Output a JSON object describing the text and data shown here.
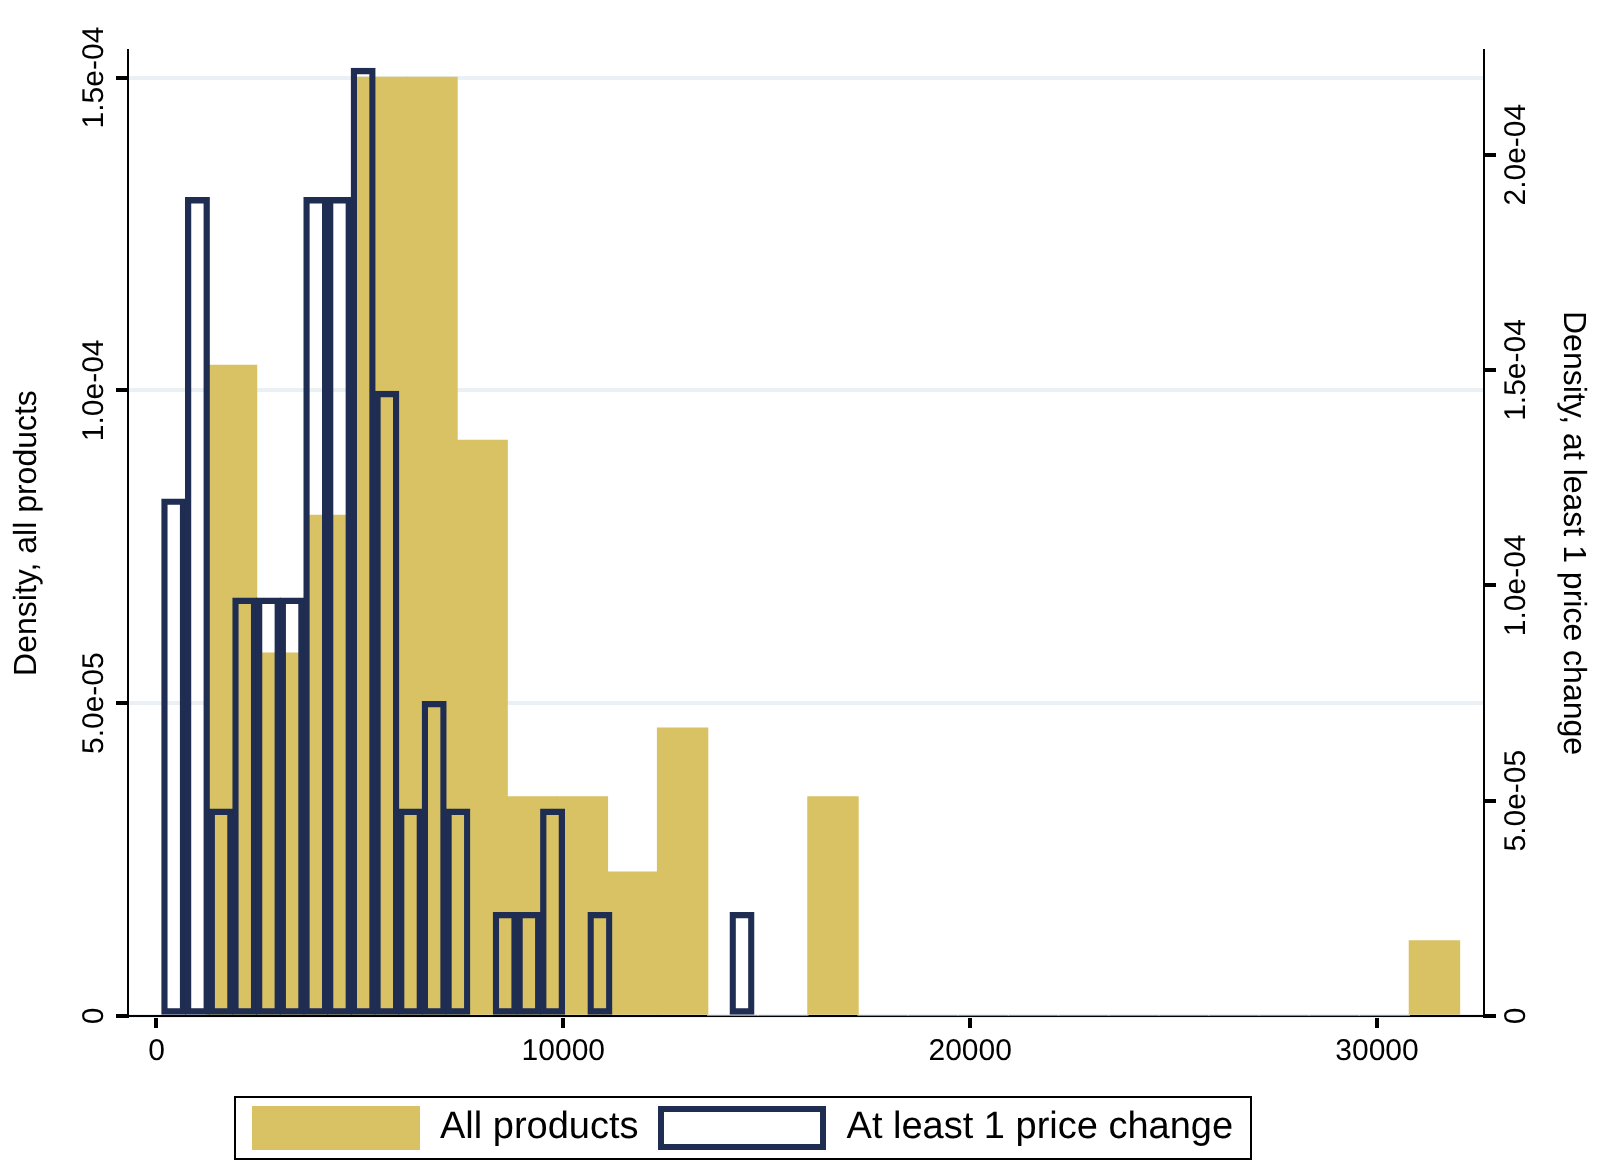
{
  "chart_data": {
    "type": "histogram",
    "ylabel": "Density, all products",
    "y2label": "Density, at least 1 price change",
    "xlim": [
      -700,
      32630
    ],
    "xticks": [
      0,
      10000,
      20000,
      30000
    ],
    "ylim": [
      0,
      0.0001544
    ],
    "yticks": [
      {
        "value": 0,
        "label": "0"
      },
      {
        "value": 5e-05,
        "label": "5.0e-05"
      },
      {
        "value": 0.0001,
        "label": "1.0e-04"
      },
      {
        "value": 0.00015,
        "label": "1.5e-04"
      }
    ],
    "y2lim": [
      0,
      0.0002243
    ],
    "y2ticks": [
      {
        "value": 0,
        "label": "0"
      },
      {
        "value": 5e-05,
        "label": "5.0e-05"
      },
      {
        "value": 0.0001,
        "label": "1.0e-04"
      },
      {
        "value": 0.00015,
        "label": "1.5e-04"
      },
      {
        "value": 0.0002,
        "label": "2.0e-04"
      }
    ],
    "grid": "y",
    "legend": "bottom",
    "bins": [
      1228,
      2460,
      3692,
      4924,
      6156,
      7388,
      8620,
      9852,
      11084,
      12316,
      13548,
      14780,
      16012,
      17244,
      18476,
      19708,
      20940,
      22172,
      23404,
      24636,
      25868,
      27100,
      28332,
      29564,
      30796,
      32028
    ],
    "series": [
      {
        "name": "All products",
        "color": "#d9c264",
        "values": [
          0.000104,
          5.8e-05,
          8e-05,
          0.00015,
          0.00015,
          9.2e-05,
          3.5e-05,
          3.5e-05,
          2.3e-05,
          4.6e-05,
          0,
          0,
          3.5e-05,
          0,
          0,
          0,
          0,
          0,
          0,
          0,
          0,
          0,
          0,
          0,
          1.2e-05
        ]
      },
      {
        "name": "At least 1 price change",
        "color": "#1f2d52",
        "type": "bar",
        "axis": "y2",
        "x": [
          424,
          1006,
          1588,
          2170,
          2752,
          3334,
          3916,
          4498,
          5080,
          5662,
          6244,
          6826,
          7408,
          7990,
          8572,
          9154,
          9736,
          10318,
          10900,
          11482,
          12064,
          12646,
          13228,
          13810,
          14392
        ],
        "values": [
          0.00012,
          0.00019,
          4.8e-05,
          9.7e-05,
          9.7e-05,
          9.7e-05,
          0.00019,
          0.00019,
          0.00022,
          0.000145,
          4.8e-05,
          7.3e-05,
          4.8e-05,
          0,
          2.4e-05,
          2.4e-05,
          4.8e-05,
          0,
          2.4e-05,
          0,
          0,
          0,
          0,
          0,
          2.4e-05
        ]
      }
    ]
  }
}
